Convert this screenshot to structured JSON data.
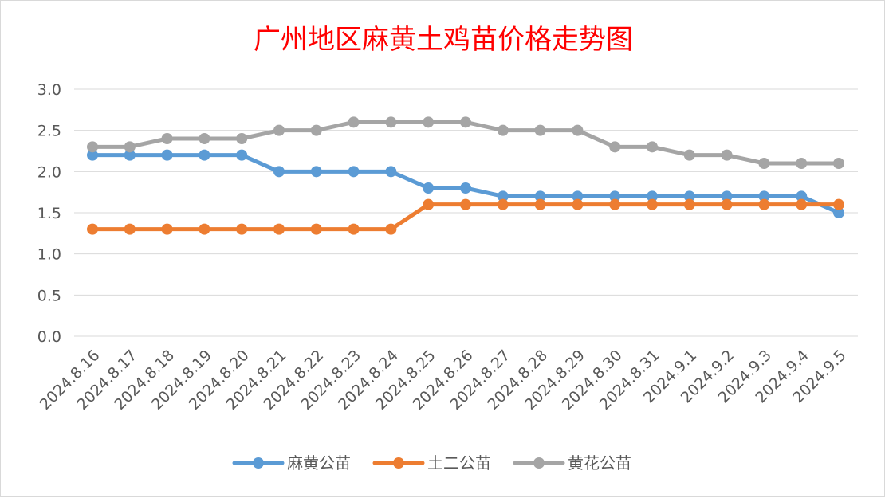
{
  "chart_data": {
    "type": "line",
    "title": "广州地区麻黄土鸡苗价格走势图",
    "title_color": "#ff0000",
    "categories": [
      "2024.8.16",
      "2024.8.17",
      "2024.8.18",
      "2024.8.19",
      "2024.8.20",
      "2024.8.21",
      "2024.8.22",
      "2024.8.23",
      "2024.8.24",
      "2024.8.25",
      "2024.8.26",
      "2024.8.27",
      "2024.8.28",
      "2024.8.29",
      "2024.8.30",
      "2024.8.31",
      "2024.9.1",
      "2024.9.2",
      "2024.9.3",
      "2024.9.4",
      "2024.9.5"
    ],
    "series": [
      {
        "name": "麻黄公苗",
        "color": "#5b9bd5",
        "values": [
          2.2,
          2.2,
          2.2,
          2.2,
          2.2,
          2.0,
          2.0,
          2.0,
          2.0,
          1.8,
          1.8,
          1.7,
          1.7,
          1.7,
          1.7,
          1.7,
          1.7,
          1.7,
          1.7,
          1.7,
          1.5
        ]
      },
      {
        "name": "土二公苗",
        "color": "#ed7d31",
        "values": [
          1.3,
          1.3,
          1.3,
          1.3,
          1.3,
          1.3,
          1.3,
          1.3,
          1.3,
          1.6,
          1.6,
          1.6,
          1.6,
          1.6,
          1.6,
          1.6,
          1.6,
          1.6,
          1.6,
          1.6,
          1.6
        ]
      },
      {
        "name": "黄花公苗",
        "color": "#a5a5a5",
        "values": [
          2.3,
          2.3,
          2.4,
          2.4,
          2.4,
          2.5,
          2.5,
          2.6,
          2.6,
          2.6,
          2.6,
          2.5,
          2.5,
          2.5,
          2.3,
          2.3,
          2.2,
          2.2,
          2.1,
          2.1,
          2.1
        ]
      }
    ],
    "ylim": [
      0,
      3.0
    ],
    "yticks": [
      "0.0",
      "0.5",
      "1.0",
      "1.5",
      "2.0",
      "2.5",
      "3.0"
    ],
    "grid": true,
    "legend_position": "bottom"
  }
}
